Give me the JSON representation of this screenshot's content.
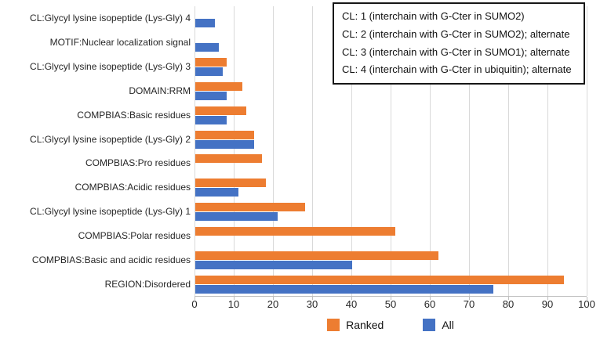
{
  "chart_data": {
    "type": "bar",
    "orientation": "horizontal",
    "title": "",
    "xlabel": "",
    "ylabel": "",
    "xlim": [
      0,
      100
    ],
    "x_ticks": [
      0,
      10,
      20,
      30,
      40,
      50,
      60,
      70,
      80,
      90,
      100
    ],
    "grid": true,
    "legend_position": "bottom",
    "categories": [
      "CL:Glycyl lysine isopeptide (Lys-Gly) 4",
      "MOTIF:Nuclear localization signal",
      "CL:Glycyl lysine isopeptide (Lys-Gly) 3",
      "DOMAIN:RRM",
      "COMPBIAS:Basic residues",
      "CL:Glycyl lysine isopeptide (Lys-Gly) 2",
      "COMPBIAS:Pro residues",
      "COMPBIAS:Acidic residues",
      "CL:Glycyl lysine isopeptide (Lys-Gly) 1",
      "COMPBIAS:Polar residues",
      "COMPBIAS:Basic and acidic residues",
      "REGION:Disordered"
    ],
    "series": [
      {
        "name": "Ranked",
        "color": "#ED7D31",
        "values": [
          null,
          null,
          8,
          12,
          13,
          15,
          17,
          18,
          28,
          51,
          62,
          94
        ]
      },
      {
        "name": "All",
        "color": "#4472C4",
        "values": [
          5,
          6,
          7,
          8,
          8,
          15,
          null,
          11,
          21,
          null,
          40,
          76
        ]
      }
    ]
  },
  "annotation_box": {
    "lines": [
      "CL: 1 (interchain with G-Cter in SUMO2)",
      "CL: 2 (interchain with G-Cter in SUMO2); alternate",
      "CL: 3 (interchain with G-Cter in SUMO1); alternate",
      "CL: 4 (interchain with G-Cter in ubiquitin); alternate"
    ]
  },
  "colors": {
    "ranked": "#ED7D31",
    "all": "#4472C4",
    "gridline": "#D9D9D9",
    "axis": "#BFBFBF",
    "text": "#262626"
  }
}
